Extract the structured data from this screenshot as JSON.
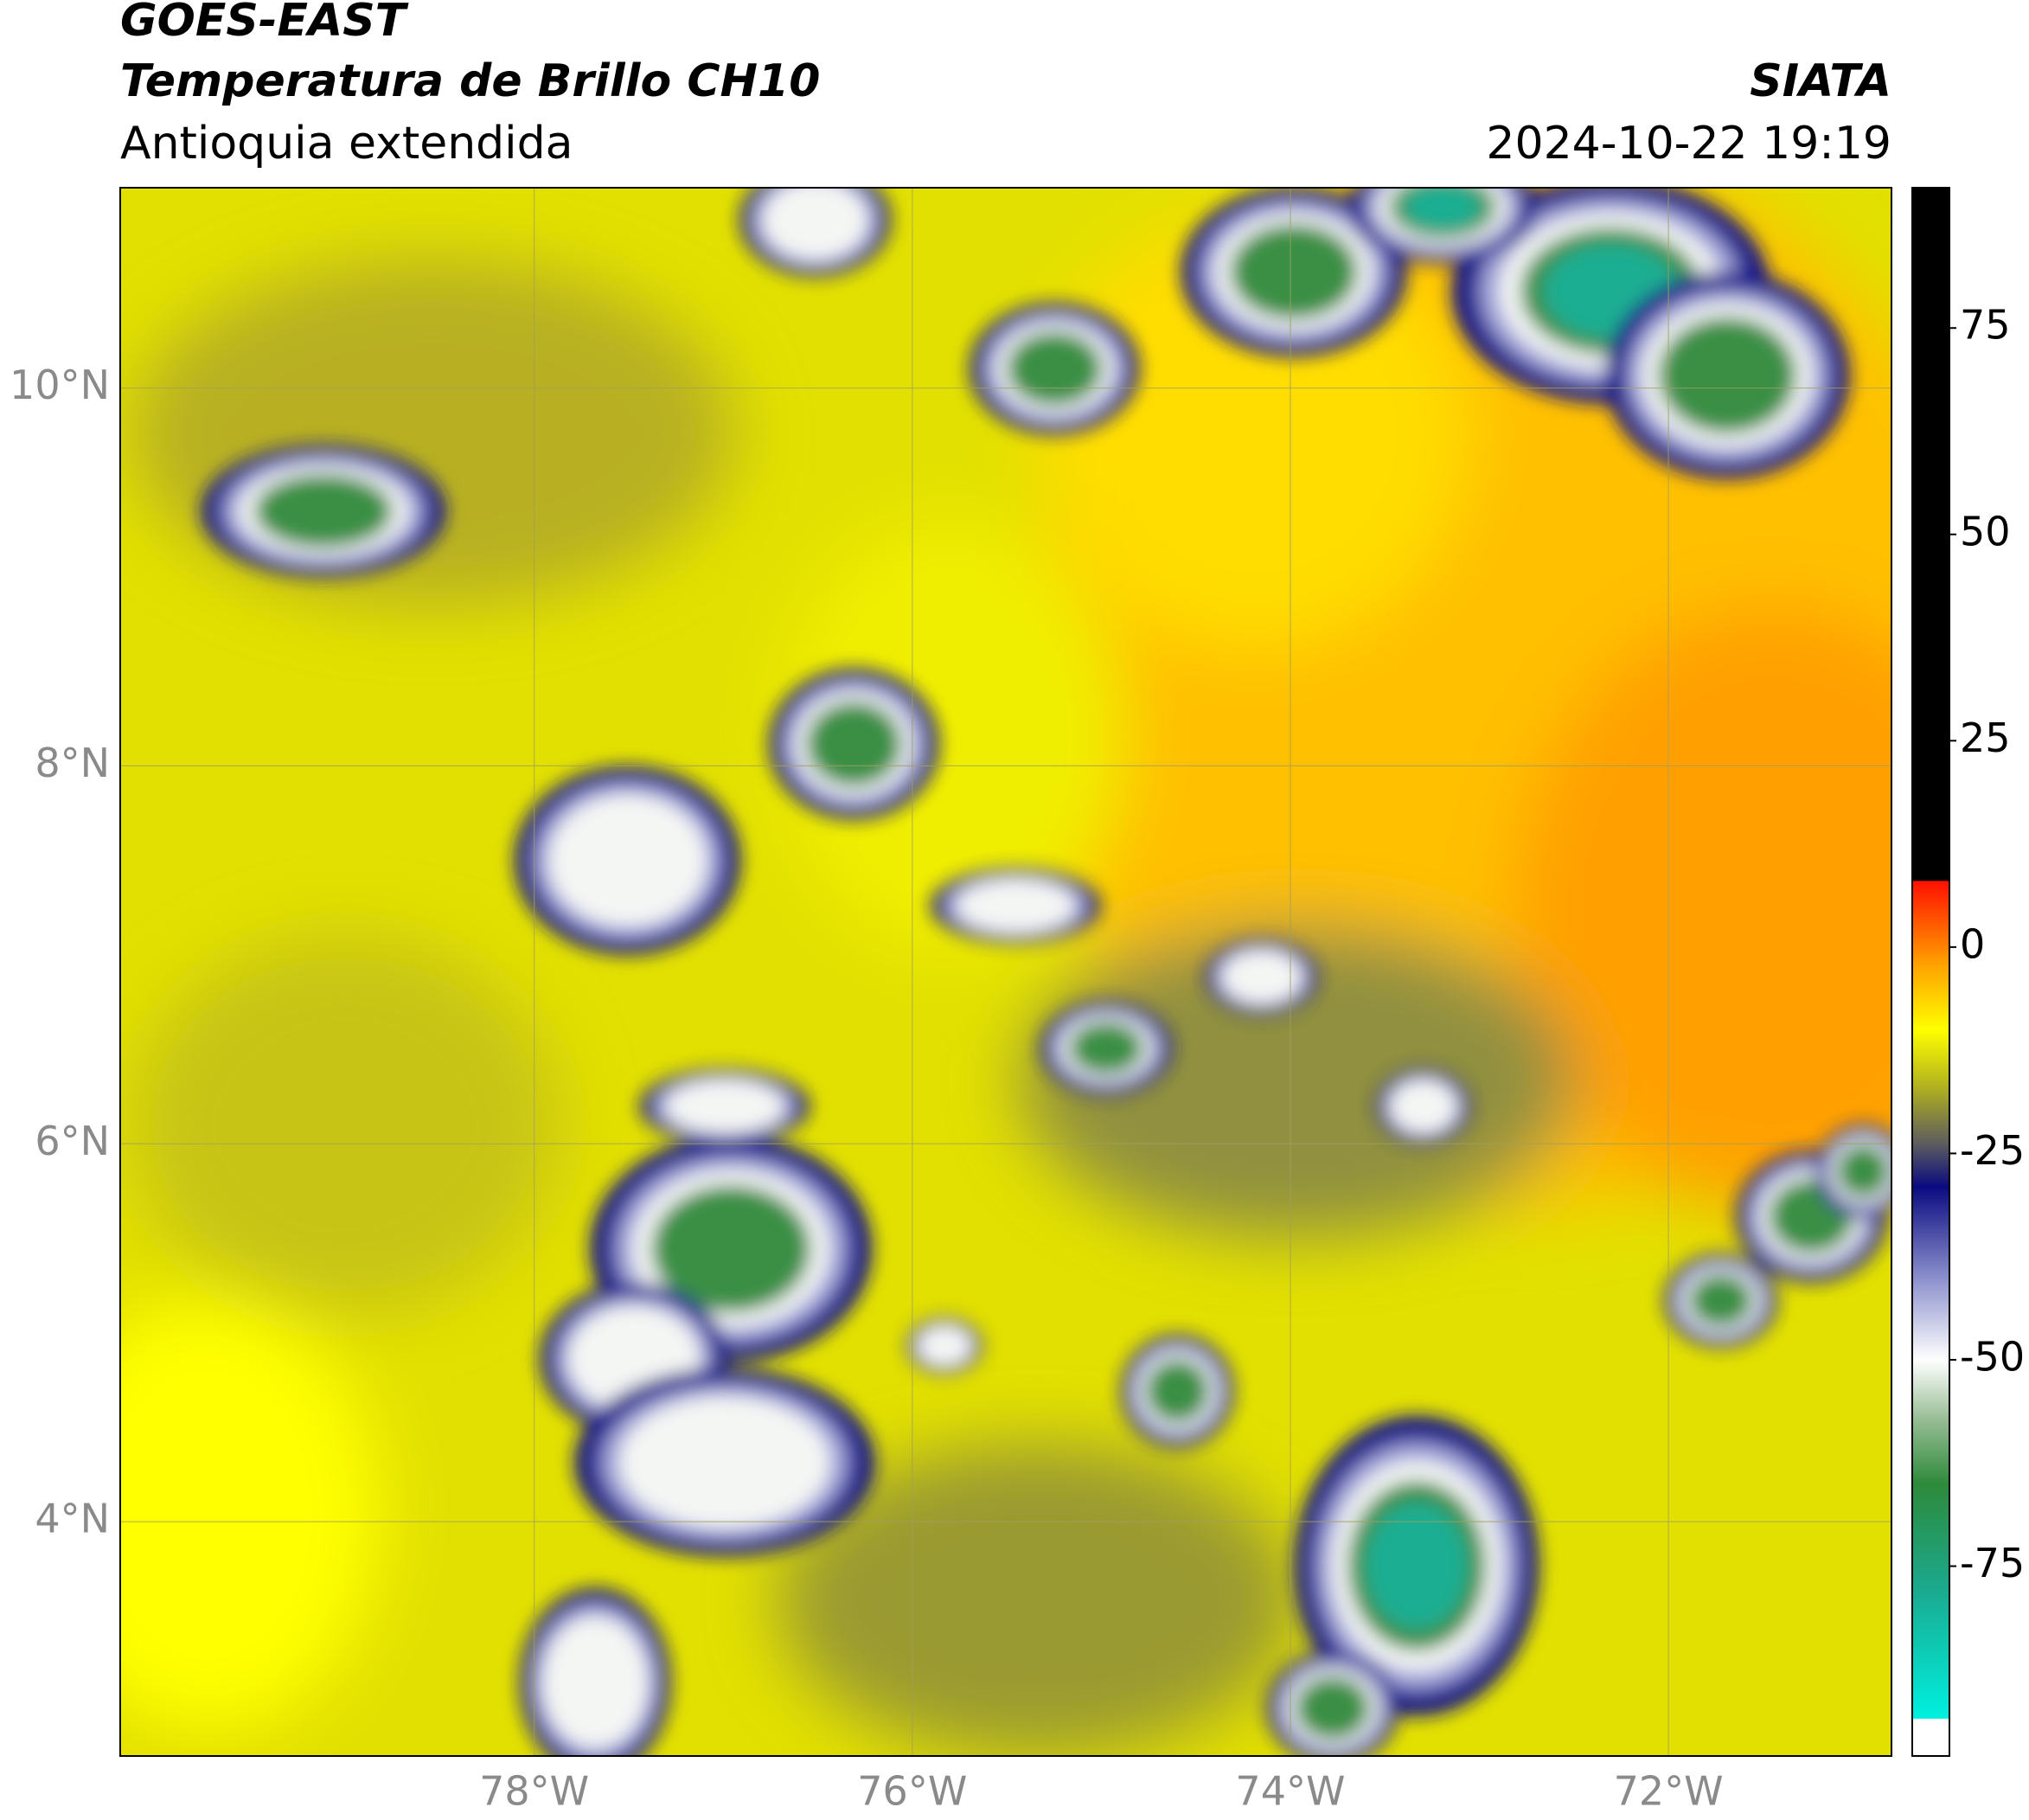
{
  "header": {
    "line1": "GOES-EAST",
    "line2": "Temperatura de Brillo CH10",
    "line3": "Antioquia extendida",
    "source": "SIATA",
    "datetime": "2024-10-22 19:19"
  },
  "map": {
    "xlim": [
      -80.19,
      -70.82
    ],
    "ylim": [
      2.76,
      11.06
    ],
    "xticks": [
      {
        "value": -78,
        "label": "78°W"
      },
      {
        "value": -76,
        "label": "76°W"
      },
      {
        "value": -74,
        "label": "74°W"
      },
      {
        "value": -72,
        "label": "72°W"
      }
    ],
    "yticks": [
      {
        "value": 4,
        "label": "4°N"
      },
      {
        "value": 6,
        "label": "6°N"
      },
      {
        "value": 8,
        "label": "8°N"
      },
      {
        "value": 10,
        "label": "10°N"
      }
    ],
    "grid": true
  },
  "colorbar": {
    "lim": [
      -98,
      92
    ],
    "ticks": [
      -75,
      -50,
      -25,
      0,
      25,
      50,
      75
    ],
    "stops": [
      {
        "value": -98,
        "color": "#ffffff"
      },
      {
        "value": -93.5,
        "color": "#ffffff"
      },
      {
        "value": -93.4,
        "color": "#00f0e0"
      },
      {
        "value": -78,
        "color": "#1aaa90"
      },
      {
        "value": -65,
        "color": "#2e8a3a"
      },
      {
        "value": -57,
        "color": "#9abf98"
      },
      {
        "value": -50,
        "color": "#ffffff"
      },
      {
        "value": -40,
        "color": "#8a8fcc"
      },
      {
        "value": -29,
        "color": "#0a0a80"
      },
      {
        "value": -24,
        "color": "#5a5a60"
      },
      {
        "value": -17,
        "color": "#b0b020"
      },
      {
        "value": -10,
        "color": "#ffff00"
      },
      {
        "value": -2,
        "color": "#ffa000"
      },
      {
        "value": 8,
        "color": "#ff1000"
      },
      {
        "value": 8.1,
        "color": "#000000"
      },
      {
        "value": 92,
        "color": "#000000"
      }
    ]
  }
}
